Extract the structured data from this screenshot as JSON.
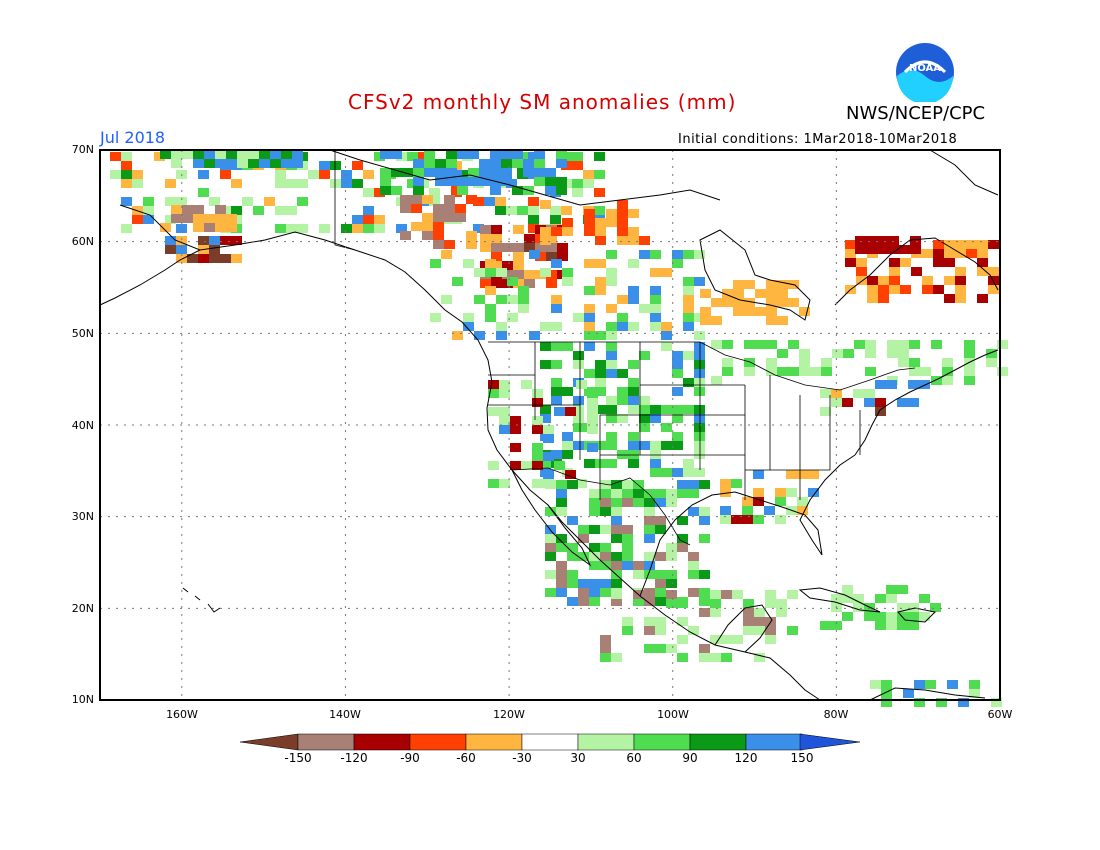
{
  "header": {
    "title": "CFSv2 monthly SM anomalies (mm)",
    "valid_month": "Jul 2018",
    "init_conditions": "Initial conditions: 1Mar2018-10Mar2018",
    "agency": "NWS/NCEP/CPC",
    "logo_text": "NOAA"
  },
  "axes": {
    "lat_labels": [
      "70N",
      "60N",
      "50N",
      "40N",
      "30N",
      "20N",
      "10N"
    ],
    "lon_labels": [
      "160W",
      "140W",
      "120W",
      "100W",
      "80W",
      "60W"
    ]
  },
  "colorbar": {
    "labels": [
      "-150",
      "-120",
      "-90",
      "-60",
      "-30",
      "30",
      "60",
      "90",
      "120",
      "150"
    ],
    "colors": [
      "#7a3d2a",
      "#a88076",
      "#a80000",
      "#ff4000",
      "#ffb640",
      "#ffffff",
      "#b4f2a4",
      "#50dc50",
      "#0a9a18",
      "#3a8fe8",
      "#1f55d8"
    ]
  },
  "map": {
    "bounds": {
      "lon_min": -170,
      "lon_max": -60,
      "lat_min": 10,
      "lat_max": 70
    },
    "grid_lon": [
      -160,
      -140,
      -120,
      -100,
      -80
    ],
    "grid_lat": [
      20,
      30,
      40,
      50,
      60
    ]
  }
}
